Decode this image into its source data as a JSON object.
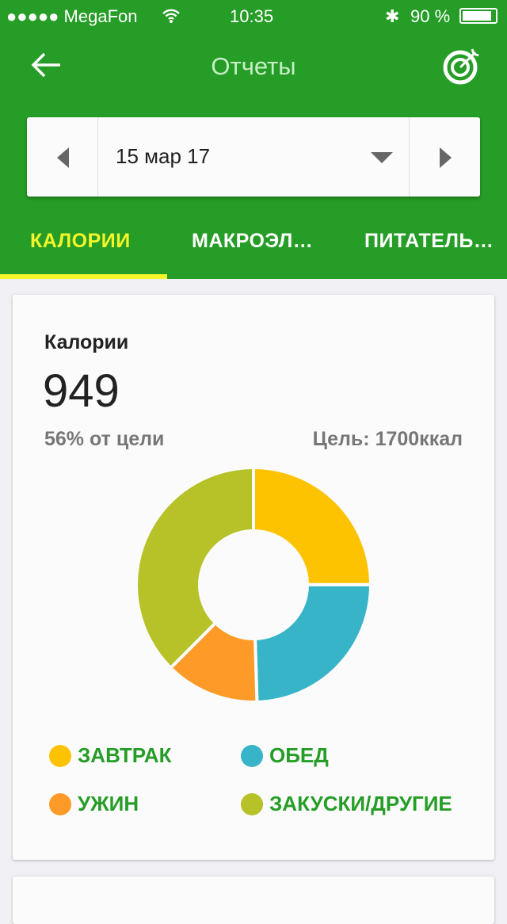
{
  "status": {
    "carrier": "●●●●● MegaFon",
    "time": "10:35",
    "battery": "90 %"
  },
  "nav": {
    "title": "Отчеты",
    "back_icon": "arrow-left-icon",
    "goal_icon": "target-icon"
  },
  "date": {
    "value": "15 мар 17"
  },
  "tabs": [
    {
      "label": "КАЛОРИИ",
      "active": true
    },
    {
      "label": "МАКРОЭЛ…"
    },
    {
      "label": "ПИТАТЕЛЬ…"
    }
  ],
  "card": {
    "title": "Калории",
    "value": "949",
    "percent": "56% от цели",
    "goal": "Цель: 1700ккал"
  },
  "chart_data": {
    "type": "pie",
    "categories": [
      "ЗАВТРАК",
      "ОБЕД",
      "УЖИН",
      "ЗАКУСКИ/ДРУГИЕ"
    ],
    "values": [
      237,
      233,
      123,
      356
    ],
    "colors": [
      "#fdc301",
      "#38b4c9",
      "#fd9a28",
      "#b6c227"
    ],
    "legend": "bottom"
  }
}
